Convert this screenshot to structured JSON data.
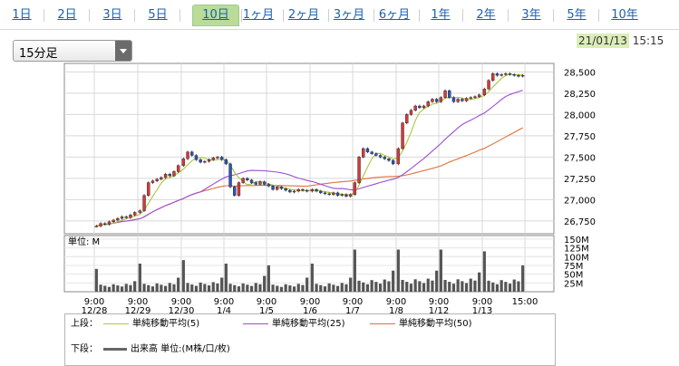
{
  "tabs": [
    {
      "label": "1日",
      "active": false
    },
    {
      "label": "2日",
      "active": false
    },
    {
      "label": "3日",
      "active": false
    },
    {
      "label": "5日",
      "active": false
    },
    {
      "label": "10日",
      "active": true
    },
    {
      "label": "1ヶ月",
      "active": false
    },
    {
      "label": "2ヶ月",
      "active": false
    },
    {
      "label": "3ヶ月",
      "active": false
    },
    {
      "label": "6ヶ月",
      "active": false
    },
    {
      "label": "1年",
      "active": false
    },
    {
      "label": "2年",
      "active": false
    },
    {
      "label": "3年",
      "active": false
    },
    {
      "label": "5年",
      "active": false
    },
    {
      "label": "10年",
      "active": false
    }
  ],
  "interval_select": {
    "value": "15分足"
  },
  "datetime": {
    "date": "21/01/13",
    "time": "15:15"
  },
  "legend": {
    "upper_label": "上段：",
    "lower_label": "下段：",
    "items": [
      {
        "label": "単純移動平均(5)",
        "color": "#a8c83c"
      },
      {
        "label": "単純移動平均(25)",
        "color": "#9b4fd0"
      },
      {
        "label": "単純移動平均(50)",
        "color": "#e0703a"
      }
    ],
    "volume_label": "出来高 単位:(M株/口/枚)"
  },
  "chart_data": [
    {
      "type": "candlestick",
      "title": "",
      "ylim": [
        26600,
        28600
      ],
      "yticks": [
        "28,500",
        "28,250",
        "28,000",
        "27,750",
        "27,500",
        "27,250",
        "27,000",
        "26,750"
      ],
      "ytick_values": [
        28500,
        28250,
        28000,
        27750,
        27500,
        27250,
        27000,
        26750
      ],
      "sessions": [
        "12/28",
        "12/29",
        "12/30",
        "1/4",
        "1/5",
        "1/6",
        "1/7",
        "1/8",
        "1/12",
        "1/13"
      ],
      "x_tick_labels": [
        {
          "time": "9:00",
          "date": "12/28"
        },
        {
          "time": "9:00",
          "date": "12/29"
        },
        {
          "time": "9:00",
          "date": "12/30"
        },
        {
          "time": "9:00",
          "date": "1/4"
        },
        {
          "time": "9:00",
          "date": "1/5"
        },
        {
          "time": "9:00",
          "date": "1/6"
        },
        {
          "time": "9:00",
          "date": "1/7"
        },
        {
          "time": "9:00",
          "date": "1/8"
        },
        {
          "time": "9:00",
          "date": "1/12"
        },
        {
          "time": "9:00",
          "date": "1/13"
        },
        {
          "time": "15:00",
          "date": ""
        }
      ],
      "close_path": [
        {
          "session": "12/28",
          "prices": [
            26690,
            26720,
            26710,
            26740,
            26760,
            26780,
            26800,
            26790,
            26820,
            26850
          ]
        },
        {
          "session": "12/29",
          "prices": [
            26870,
            27050,
            27200,
            27220,
            27240,
            27260,
            27300,
            27280,
            27330,
            27400
          ]
        },
        {
          "session": "12/30",
          "prices": [
            27480,
            27560,
            27520,
            27470,
            27440,
            27450,
            27470,
            27490,
            27500,
            27470
          ]
        },
        {
          "session": "1/4",
          "prices": [
            27420,
            27150,
            27050,
            27200,
            27250,
            27230,
            27200,
            27180,
            27210,
            27180
          ]
        },
        {
          "session": "1/5",
          "prices": [
            27160,
            27120,
            27150,
            27130,
            27110,
            27090,
            27100,
            27120,
            27110,
            27100
          ]
        },
        {
          "session": "1/6",
          "prices": [
            27120,
            27100,
            27080,
            27070,
            27060,
            27080,
            27050,
            27060,
            27040,
            27060
          ]
        },
        {
          "session": "1/7",
          "prices": [
            27200,
            27500,
            27600,
            27560,
            27540,
            27520,
            27500,
            27480,
            27460,
            27420
          ]
        },
        {
          "session": "1/8",
          "prices": [
            27600,
            27900,
            28000,
            28050,
            28100,
            28080,
            28100,
            28150,
            28180,
            28150
          ]
        },
        {
          "session": "1/12",
          "prices": [
            28200,
            28280,
            28200,
            28150,
            28180,
            28160,
            28190,
            28200,
            28210,
            28230
          ]
        },
        {
          "session": "1/13",
          "prices": [
            28300,
            28400,
            28480,
            28460,
            28470,
            28480,
            28470,
            28460,
            28450,
            28460
          ]
        }
      ],
      "series": [
        {
          "name": "単純移動平均(5)",
          "color": "#a8c83c"
        },
        {
          "name": "単純移動平均(25)",
          "color": "#9b4fd0"
        },
        {
          "name": "単純移動平均(50)",
          "color": "#e0703a"
        }
      ],
      "grid": true
    },
    {
      "type": "bar",
      "title": "",
      "unit_label": "単位: M",
      "ylim": [
        0,
        160
      ],
      "yticks": [
        "150M",
        "125M",
        "100M",
        "75M",
        "50M",
        "25M"
      ],
      "ytick_values": [
        150,
        125,
        100,
        75,
        50,
        25
      ],
      "session_open_volume": [
        65,
        80,
        90,
        80,
        75,
        80,
        120,
        120,
        120,
        115
      ],
      "session_other_volume_avg": [
        18,
        20,
        22,
        20,
        18,
        20,
        28,
        30,
        30,
        28
      ],
      "session_close_volume": [
        30,
        40,
        40,
        45,
        40,
        40,
        60,
        60,
        55,
        75
      ]
    }
  ]
}
